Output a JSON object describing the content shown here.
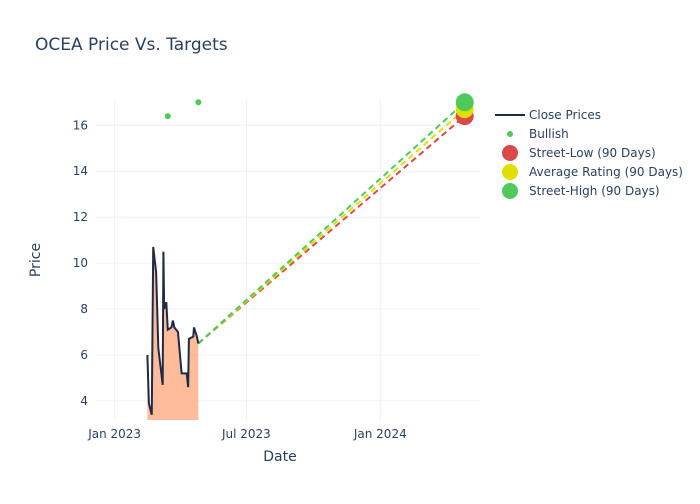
{
  "chart_data": {
    "type": "line",
    "title": "OCEA Price Vs. Targets",
    "xlabel": "Date",
    "ylabel": "Price",
    "xlim": [
      "2022-12-05",
      "2024-05-17"
    ],
    "ylim": [
      3.17,
      17.1
    ],
    "x_ticks": [
      {
        "date": "2023-01-01",
        "label": "Jan 2023"
      },
      {
        "date": "2023-07-01",
        "label": "Jul 2023"
      },
      {
        "date": "2024-01-01",
        "label": "Jan 2024"
      }
    ],
    "y_ticks": [
      4,
      6,
      8,
      10,
      12,
      14,
      16
    ],
    "grid": true,
    "legend_placement": "top-right",
    "colors": {
      "close": "#1f2a44",
      "fill": "#ffb088",
      "bullish": "#4ec95a",
      "low": "#d94a4a",
      "avg": "#e0e000",
      "high": "#4ec95a"
    },
    "series": [
      {
        "name": "Close Prices",
        "type": "line-fill",
        "x": [
          "2023-02-15",
          "2023-02-17",
          "2023-02-21",
          "2023-02-23",
          "2023-02-27",
          "2023-03-02",
          "2023-03-08",
          "2023-03-09",
          "2023-03-10",
          "2023-03-13",
          "2023-03-15",
          "2023-03-20",
          "2023-03-22",
          "2023-03-24",
          "2023-03-29",
          "2023-04-03",
          "2023-04-10",
          "2023-04-12",
          "2023-04-13",
          "2023-04-19",
          "2023-04-20",
          "2023-04-24",
          "2023-04-26"
        ],
        "y": [
          6.0,
          3.9,
          3.4,
          10.7,
          9.6,
          6.3,
          4.7,
          10.5,
          8.0,
          8.3,
          7.1,
          7.2,
          7.5,
          7.2,
          7.0,
          5.2,
          5.2,
          4.6,
          6.7,
          6.8,
          7.2,
          6.8,
          6.5
        ]
      },
      {
        "name": "Bullish",
        "type": "scatter",
        "x": [
          "2023-03-15",
          "2023-04-26"
        ],
        "y": [
          16.4,
          17.0
        ]
      },
      {
        "name": "Street-Low (90 Days)",
        "type": "target",
        "x": "2024-04-26",
        "y": 16.4
      },
      {
        "name": "Average Rating (90 Days)",
        "type": "target",
        "x": "2024-04-26",
        "y": 16.7
      },
      {
        "name": "Street-High (90 Days)",
        "type": "target",
        "x": "2024-04-26",
        "y": 17.0
      }
    ]
  }
}
